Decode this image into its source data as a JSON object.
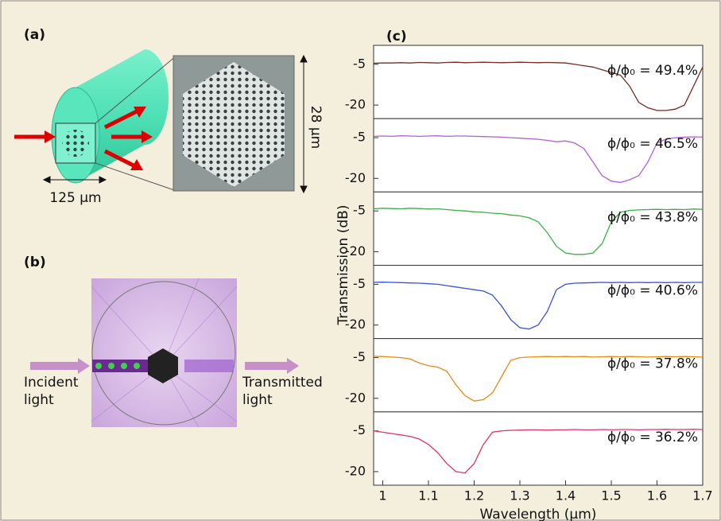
{
  "panel_a": {
    "label": "(a)",
    "diameter": "125 μm",
    "core_size": "28 μm"
  },
  "panel_b": {
    "label": "(b)",
    "incident": [
      "Incident",
      "light"
    ],
    "transmitted": [
      "Transmitted",
      "light"
    ]
  },
  "panel_c": {
    "label": "(c)",
    "ylabel": "Transmission (dB)"
  },
  "chart_data": [
    {
      "type": "line",
      "annotation": "ϕ/ϕ₀ = 49.4%",
      "xlim": [
        0.98,
        1.7
      ],
      "ylim": [
        -25,
        2
      ],
      "yticks": [
        -5,
        -20
      ],
      "x": [
        0.98,
        1.0,
        1.02,
        1.04,
        1.06,
        1.08,
        1.1,
        1.12,
        1.14,
        1.16,
        1.18,
        1.2,
        1.22,
        1.24,
        1.26,
        1.28,
        1.3,
        1.32,
        1.34,
        1.36,
        1.38,
        1.4,
        1.42,
        1.44,
        1.46,
        1.48,
        1.5,
        1.52,
        1.54,
        1.56,
        1.58,
        1.6,
        1.62,
        1.64,
        1.66,
        1.68,
        1.7
      ],
      "series": [
        {
          "color": "#7a2a20",
          "values": [
            -4.6,
            -4.5,
            -4.5,
            -4.4,
            -4.5,
            -4.3,
            -4.4,
            -4.5,
            -4.3,
            -4.2,
            -4.4,
            -4.3,
            -4.2,
            -4.3,
            -4.4,
            -4.3,
            -4.2,
            -4.3,
            -4.4,
            -4.3,
            -4.4,
            -4.5,
            -5,
            -5.5,
            -6,
            -7,
            -8,
            -9,
            -13,
            -19,
            -21,
            -22,
            -22,
            -21.5,
            -20,
            -13,
            -6
          ]
        }
      ]
    },
    {
      "type": "line",
      "annotation": "ϕ/ϕ₀ = 46.5%",
      "xlim": [
        0.98,
        1.7
      ],
      "ylim": [
        -25,
        2
      ],
      "yticks": [
        -5,
        -20
      ],
      "x": [
        0.98,
        1.0,
        1.02,
        1.04,
        1.06,
        1.08,
        1.1,
        1.12,
        1.14,
        1.16,
        1.18,
        1.2,
        1.22,
        1.24,
        1.26,
        1.28,
        1.3,
        1.32,
        1.34,
        1.36,
        1.38,
        1.4,
        1.42,
        1.44,
        1.46,
        1.48,
        1.5,
        1.52,
        1.54,
        1.56,
        1.58,
        1.6,
        1.62,
        1.64,
        1.66,
        1.68,
        1.7
      ],
      "series": [
        {
          "color": "#b45fd6",
          "values": [
            -4.5,
            -4.4,
            -4.5,
            -4.3,
            -4.4,
            -4.5,
            -4.4,
            -4.3,
            -4.5,
            -4.4,
            -4.4,
            -4.5,
            -4.6,
            -4.7,
            -4.8,
            -5,
            -5.2,
            -5.4,
            -5.6,
            -6,
            -6.5,
            -6.2,
            -7,
            -9,
            -14,
            -19,
            -21,
            -21.5,
            -20.5,
            -19,
            -14,
            -7,
            -5.5,
            -5,
            -4.8,
            -4.7,
            -4.8
          ]
        }
      ]
    },
    {
      "type": "line",
      "annotation": "ϕ/ϕ₀ = 43.8%",
      "xlim": [
        0.98,
        1.7
      ],
      "ylim": [
        -25,
        2
      ],
      "yticks": [
        -5,
        -20
      ],
      "x": [
        0.98,
        1.0,
        1.02,
        1.04,
        1.06,
        1.08,
        1.1,
        1.12,
        1.14,
        1.16,
        1.18,
        1.2,
        1.22,
        1.24,
        1.26,
        1.28,
        1.3,
        1.32,
        1.34,
        1.36,
        1.38,
        1.4,
        1.42,
        1.44,
        1.46,
        1.48,
        1.5,
        1.52,
        1.54,
        1.56,
        1.58,
        1.6,
        1.62,
        1.64,
        1.66,
        1.68,
        1.7
      ],
      "series": [
        {
          "color": "#3cb043",
          "values": [
            -4.2,
            -4.0,
            -4.1,
            -4.2,
            -4.0,
            -4.1,
            -4.3,
            -4.2,
            -4.5,
            -4.8,
            -5,
            -5.3,
            -5.5,
            -5.8,
            -6,
            -6.5,
            -6.8,
            -7.5,
            -9,
            -13,
            -18,
            -20.5,
            -21,
            -21,
            -20.5,
            -17,
            -9,
            -5.5,
            -4.8,
            -4.6,
            -4.5,
            -4.4,
            -4.5,
            -4.4,
            -4.5,
            -4.3,
            -4.4
          ]
        }
      ]
    },
    {
      "type": "line",
      "annotation": "ϕ/ϕ₀ = 40.6%",
      "xlim": [
        0.98,
        1.7
      ],
      "ylim": [
        -25,
        2
      ],
      "yticks": [
        -5,
        -20
      ],
      "x": [
        0.98,
        1.0,
        1.02,
        1.04,
        1.06,
        1.08,
        1.1,
        1.12,
        1.14,
        1.16,
        1.18,
        1.2,
        1.22,
        1.24,
        1.26,
        1.28,
        1.3,
        1.32,
        1.34,
        1.36,
        1.38,
        1.4,
        1.42,
        1.44,
        1.46,
        1.48,
        1.5,
        1.52,
        1.54,
        1.56,
        1.58,
        1.6,
        1.62,
        1.64,
        1.66,
        1.68,
        1.7
      ],
      "series": [
        {
          "color": "#3553d8",
          "values": [
            -4.3,
            -4.2,
            -4.3,
            -4.4,
            -4.5,
            -4.6,
            -4.8,
            -5,
            -5.5,
            -6,
            -6.5,
            -7,
            -7.5,
            -9,
            -13,
            -18,
            -21,
            -21.5,
            -20,
            -15,
            -7,
            -5,
            -4.6,
            -4.5,
            -4.4,
            -4.3,
            -4.4,
            -4.3,
            -4.4,
            -4.3,
            -4.4,
            -4.3,
            -4.4,
            -4.3,
            -4.4,
            -4.3,
            -4.3
          ]
        }
      ]
    },
    {
      "type": "line",
      "annotation": "ϕ/ϕ₀ = 37.8%",
      "xlim": [
        0.98,
        1.7
      ],
      "ylim": [
        -25,
        2
      ],
      "yticks": [
        -5,
        -20
      ],
      "x": [
        0.98,
        1.0,
        1.02,
        1.04,
        1.06,
        1.08,
        1.1,
        1.12,
        1.14,
        1.16,
        1.18,
        1.2,
        1.22,
        1.24,
        1.26,
        1.28,
        1.3,
        1.32,
        1.34,
        1.36,
        1.38,
        1.4,
        1.42,
        1.44,
        1.46,
        1.48,
        1.5,
        1.52,
        1.54,
        1.56,
        1.58,
        1.6,
        1.62,
        1.64,
        1.66,
        1.68,
        1.7
      ],
      "series": [
        {
          "color": "#e88a1a",
          "values": [
            -4.5,
            -4.6,
            -4.8,
            -5,
            -5.5,
            -7,
            -8,
            -8.5,
            -10,
            -15,
            -19,
            -21,
            -20.5,
            -18,
            -12,
            -6,
            -5,
            -4.8,
            -4.7,
            -4.6,
            -4.7,
            -4.6,
            -4.7,
            -4.6,
            -4.8,
            -4.7,
            -4.6,
            -4.7,
            -4.6,
            -4.7,
            -4.8,
            -4.7,
            -4.6,
            -4.7,
            -4.6,
            -4.7,
            -4.8
          ]
        }
      ]
    },
    {
      "type": "line",
      "annotation": "ϕ/ϕ₀ = 36.2%",
      "xlim": [
        0.98,
        1.7
      ],
      "ylim": [
        -25,
        2
      ],
      "yticks": [
        -5,
        -20
      ],
      "xlabel": "Wavelength (μm)",
      "xticks": [
        1,
        1.1,
        1.2,
        1.3,
        1.4,
        1.5,
        1.6,
        1.7
      ],
      "x": [
        0.98,
        1.0,
        1.02,
        1.04,
        1.06,
        1.08,
        1.1,
        1.12,
        1.14,
        1.16,
        1.18,
        1.2,
        1.22,
        1.24,
        1.26,
        1.28,
        1.3,
        1.32,
        1.34,
        1.36,
        1.38,
        1.4,
        1.42,
        1.44,
        1.46,
        1.48,
        1.5,
        1.52,
        1.54,
        1.56,
        1.58,
        1.6,
        1.62,
        1.64,
        1.66,
        1.68,
        1.7
      ],
      "series": [
        {
          "color": "#e4345a",
          "values": [
            -5,
            -5.5,
            -6,
            -6.5,
            -7,
            -8,
            -10,
            -13,
            -17,
            -20,
            -20.5,
            -17,
            -10,
            -5.5,
            -5,
            -4.8,
            -4.7,
            -4.6,
            -4.6,
            -4.7,
            -4.6,
            -4.6,
            -4.5,
            -4.6,
            -4.6,
            -4.5,
            -4.6,
            -4.5,
            -4.5,
            -4.6,
            -4.5,
            -4.5,
            -4.4,
            -4.5,
            -4.5,
            -4.4,
            -4.5
          ]
        }
      ]
    }
  ]
}
